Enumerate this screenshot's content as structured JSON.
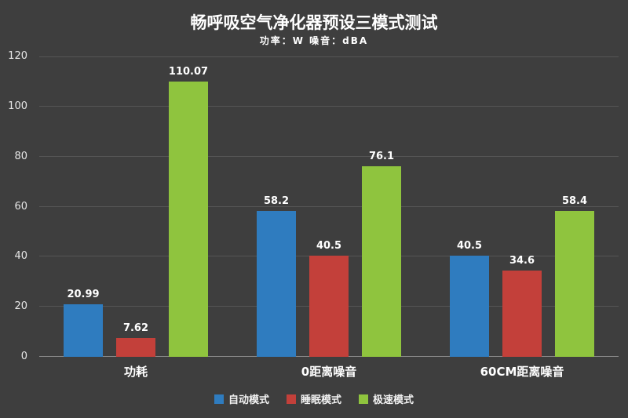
{
  "header": {
    "title": "畅呼吸空气净化器预设三模式测试",
    "subtitle": "功率：W  噪音：dBA"
  },
  "colors": {
    "background": "#3e3e3e",
    "gridline": "#555555",
    "axis_line": "#8a8a8a",
    "text": "#ffffff",
    "auto_mode_blue": "#2f7cbf",
    "sleep_mode_red": "#c3403a",
    "turbo_mode_green": "#8fc43e"
  },
  "chart_data": {
    "type": "bar",
    "title": "畅呼吸空气净化器预设三模式测试",
    "subtitle": "功率：W  噪音：dBA",
    "categories": [
      "功耗",
      "0距离噪音",
      "60CM距离噪音"
    ],
    "series": [
      {
        "name": "自动模式",
        "color": "#2f7cbf",
        "values": [
          20.99,
          58.2,
          40.5
        ]
      },
      {
        "name": "睡眠模式",
        "color": "#c3403a",
        "values": [
          7.62,
          40.5,
          34.6
        ]
      },
      {
        "name": "极速模式",
        "color": "#8fc43e",
        "values": [
          110.07,
          76.1,
          58.4
        ]
      }
    ],
    "data_labels": [
      [
        "20.99",
        "58.2",
        "40.5"
      ],
      [
        "7.62",
        "40.5",
        "34.6"
      ],
      [
        "110.07",
        "76.1",
        "58.4"
      ]
    ],
    "y_ticks": [
      0,
      20,
      40,
      60,
      80,
      100,
      120
    ],
    "ylim": [
      0,
      120
    ],
    "xlabel": "",
    "ylabel": "",
    "grid": true,
    "legend": [
      "自动模式",
      "睡眠模式",
      "极速模式"
    ],
    "legend_position": "bottom"
  }
}
